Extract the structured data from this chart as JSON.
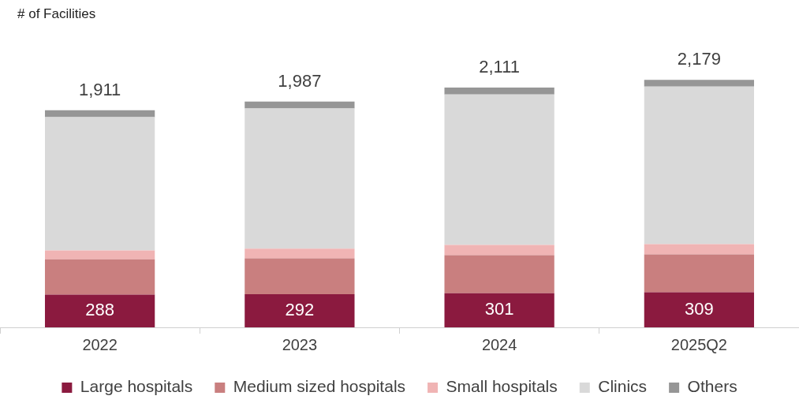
{
  "chart_data": {
    "type": "bar",
    "stacked": true,
    "ylabel": "# of Facilities",
    "categories": [
      "2022",
      "2023",
      "2024",
      "2025Q2"
    ],
    "series": [
      {
        "name": "Large hospitals",
        "color": "#8b1a3f",
        "values": [
          288,
          292,
          301,
          309
        ],
        "value_labels": [
          "288",
          "292",
          "301",
          "309"
        ]
      },
      {
        "name": "Medium sized hospitals",
        "color": "#c97f7f",
        "values": [
          311,
          316,
          334,
          334
        ]
      },
      {
        "name": "Small hospitals",
        "color": "#f0b4b4",
        "values": [
          78,
          84,
          90,
          90
        ]
      },
      {
        "name": "Clinics",
        "color": "#d9d9d9",
        "values": [
          1174,
          1235,
          1326,
          1386
        ]
      },
      {
        "name": "Others",
        "color": "#969696",
        "values": [
          60,
          60,
          60,
          60
        ]
      }
    ],
    "totals": [
      "1,911",
      "1,987",
      "2,111",
      "2,179"
    ],
    "grid": false,
    "legend": "bottom",
    "tick_labels": "x"
  }
}
